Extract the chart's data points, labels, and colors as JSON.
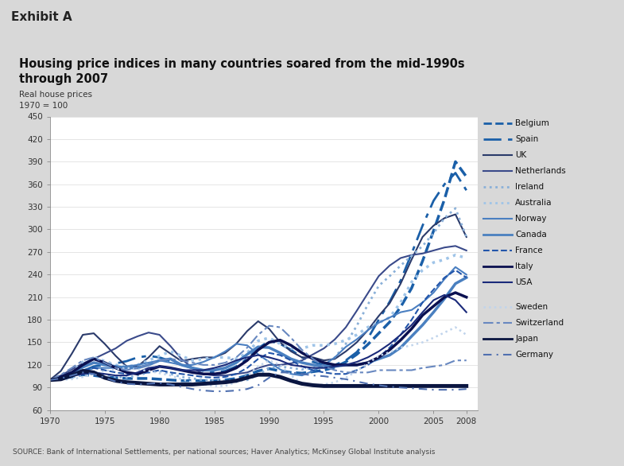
{
  "title": "Housing price indices in many countries soared from the mid-1990s\nthrough 2007",
  "subtitle": "Real house prices\n1970 = 100",
  "exhibit": "Exhibit A",
  "source": "SOURCE: Bank of International Settlements, per national sources; Haver Analytics; McKinsey Global Institute analysis",
  "ylim": [
    60,
    450
  ],
  "xlim": [
    1970,
    2009
  ],
  "yticks": [
    60,
    90,
    120,
    150,
    180,
    210,
    240,
    270,
    300,
    330,
    360,
    390,
    420,
    450
  ],
  "xticks": [
    1970,
    1975,
    1980,
    1985,
    1990,
    1995,
    2000,
    2005,
    2008
  ],
  "background_color": "#d8d8d8",
  "plot_bg": "#ffffff",
  "countries": {
    "Belgium": {
      "color": "#1a5fa8",
      "linestyle": "dashed",
      "linewidth": 2.5,
      "data": {
        "1970": 100,
        "1971": 102,
        "1972": 104,
        "1973": 107,
        "1974": 106,
        "1975": 104,
        "1976": 103,
        "1977": 102,
        "1978": 102,
        "1979": 102,
        "1980": 101,
        "1981": 100,
        "1982": 99,
        "1983": 99,
        "1984": 99,
        "1985": 99,
        "1986": 100,
        "1987": 102,
        "1988": 106,
        "1989": 112,
        "1990": 115,
        "1991": 112,
        "1992": 110,
        "1993": 109,
        "1994": 111,
        "1995": 113,
        "1996": 117,
        "1997": 124,
        "1998": 134,
        "1999": 147,
        "2000": 162,
        "2001": 177,
        "2002": 197,
        "2003": 222,
        "2004": 258,
        "2005": 298,
        "2006": 340,
        "2007": 390,
        "2008": 370
      }
    },
    "Spain": {
      "color": "#1a5fa8",
      "linestyle": "dashdot",
      "linewidth": 2.0,
      "data": {
        "1970": 100,
        "1971": 103,
        "1972": 107,
        "1973": 112,
        "1974": 118,
        "1975": 120,
        "1976": 122,
        "1977": 125,
        "1978": 130,
        "1979": 132,
        "1980": 130,
        "1981": 125,
        "1982": 120,
        "1983": 116,
        "1984": 112,
        "1985": 110,
        "1986": 112,
        "1987": 118,
        "1988": 128,
        "1989": 142,
        "1990": 152,
        "1991": 148,
        "1992": 140,
        "1993": 130,
        "1994": 124,
        "1995": 120,
        "1996": 120,
        "1997": 126,
        "1998": 137,
        "1999": 155,
        "2000": 180,
        "2001": 204,
        "2002": 232,
        "2003": 268,
        "2004": 305,
        "2005": 338,
        "2006": 360,
        "2007": 375,
        "2008": 352
      }
    },
    "UK": {
      "color": "#2a3a6a",
      "linestyle": "solid",
      "linewidth": 1.5,
      "data": {
        "1970": 100,
        "1971": 112,
        "1972": 135,
        "1973": 160,
        "1974": 162,
        "1975": 148,
        "1976": 132,
        "1977": 118,
        "1978": 118,
        "1979": 130,
        "1980": 145,
        "1981": 135,
        "1982": 125,
        "1983": 128,
        "1984": 130,
        "1985": 130,
        "1986": 136,
        "1987": 148,
        "1988": 165,
        "1989": 178,
        "1990": 168,
        "1991": 150,
        "1992": 138,
        "1993": 130,
        "1994": 130,
        "1995": 126,
        "1996": 128,
        "1997": 138,
        "1998": 150,
        "1999": 166,
        "2000": 185,
        "2001": 202,
        "2002": 228,
        "2003": 260,
        "2004": 290,
        "2005": 305,
        "2006": 315,
        "2007": 320,
        "2008": 290
      }
    },
    "Netherlands": {
      "color": "#3a4a8a",
      "linestyle": "solid",
      "linewidth": 1.5,
      "data": {
        "1970": 100,
        "1971": 106,
        "1972": 114,
        "1973": 122,
        "1974": 128,
        "1975": 135,
        "1976": 142,
        "1977": 152,
        "1978": 158,
        "1979": 163,
        "1980": 160,
        "1981": 145,
        "1982": 128,
        "1983": 116,
        "1984": 108,
        "1985": 106,
        "1986": 106,
        "1987": 108,
        "1988": 110,
        "1989": 116,
        "1990": 120,
        "1991": 120,
        "1992": 122,
        "1993": 126,
        "1994": 134,
        "1995": 142,
        "1996": 154,
        "1997": 170,
        "1998": 192,
        "1999": 215,
        "2000": 238,
        "2001": 252,
        "2002": 262,
        "2003": 266,
        "2004": 268,
        "2005": 272,
        "2006": 276,
        "2007": 278,
        "2008": 272
      }
    },
    "Ireland": {
      "color": "#8ab0d8",
      "linestyle": "dotted",
      "linewidth": 2.0,
      "data": {
        "1970": 100,
        "1971": 102,
        "1972": 104,
        "1973": 106,
        "1974": 108,
        "1975": 106,
        "1976": 104,
        "1977": 103,
        "1978": 106,
        "1979": 110,
        "1980": 112,
        "1981": 108,
        "1982": 104,
        "1983": 102,
        "1984": 100,
        "1985": 99,
        "1986": 99,
        "1987": 99,
        "1988": 100,
        "1989": 107,
        "1990": 116,
        "1991": 118,
        "1992": 116,
        "1993": 114,
        "1994": 116,
        "1995": 120,
        "1996": 130,
        "1997": 148,
        "1998": 172,
        "1999": 200,
        "2000": 225,
        "2001": 238,
        "2002": 252,
        "2003": 265,
        "2004": 278,
        "2005": 295,
        "2006": 315,
        "2007": 328,
        "2008": 290
      }
    },
    "Australia": {
      "color": "#9fc4e8",
      "linestyle": "dotted",
      "linewidth": 2.5,
      "data": {
        "1970": 100,
        "1971": 104,
        "1972": 110,
        "1973": 124,
        "1974": 130,
        "1975": 125,
        "1976": 120,
        "1977": 118,
        "1978": 120,
        "1979": 126,
        "1980": 132,
        "1981": 138,
        "1982": 132,
        "1983": 126,
        "1984": 128,
        "1985": 130,
        "1986": 130,
        "1987": 128,
        "1988": 136,
        "1989": 152,
        "1990": 156,
        "1991": 148,
        "1992": 142,
        "1993": 142,
        "1994": 146,
        "1995": 146,
        "1996": 148,
        "1997": 153,
        "1998": 160,
        "1999": 170,
        "2000": 176,
        "2001": 183,
        "2002": 203,
        "2003": 230,
        "2004": 246,
        "2005": 256,
        "2006": 260,
        "2007": 266,
        "2008": 262
      }
    },
    "Norway": {
      "color": "#4a7fc1",
      "linestyle": "solid",
      "linewidth": 1.5,
      "data": {
        "1970": 100,
        "1971": 102,
        "1972": 105,
        "1973": 110,
        "1974": 116,
        "1975": 116,
        "1976": 116,
        "1977": 118,
        "1978": 120,
        "1979": 123,
        "1980": 126,
        "1981": 123,
        "1982": 120,
        "1983": 120,
        "1984": 124,
        "1985": 130,
        "1986": 138,
        "1987": 148,
        "1988": 146,
        "1989": 134,
        "1990": 124,
        "1991": 114,
        "1992": 108,
        "1993": 106,
        "1994": 112,
        "1995": 120,
        "1996": 130,
        "1997": 144,
        "1998": 154,
        "1999": 166,
        "2000": 176,
        "2001": 183,
        "2002": 190,
        "2003": 193,
        "2004": 203,
        "2005": 216,
        "2006": 234,
        "2007": 250,
        "2008": 240
      }
    },
    "Canada": {
      "color": "#4a80c0",
      "linestyle": "solid",
      "linewidth": 2.5,
      "data": {
        "1970": 100,
        "1971": 104,
        "1972": 110,
        "1973": 117,
        "1974": 123,
        "1975": 120,
        "1976": 118,
        "1977": 116,
        "1978": 116,
        "1979": 120,
        "1980": 126,
        "1981": 128,
        "1982": 120,
        "1983": 116,
        "1984": 113,
        "1985": 113,
        "1986": 116,
        "1987": 123,
        "1988": 134,
        "1989": 144,
        "1990": 143,
        "1991": 136,
        "1992": 128,
        "1993": 123,
        "1994": 120,
        "1995": 118,
        "1996": 118,
        "1997": 120,
        "1998": 120,
        "1999": 123,
        "2000": 128,
        "2001": 133,
        "2002": 143,
        "2003": 158,
        "2004": 173,
        "2005": 190,
        "2006": 208,
        "2007": 228,
        "2008": 236
      }
    },
    "France": {
      "color": "#2255aa",
      "linestyle": "dashed",
      "linewidth": 1.5,
      "data": {
        "1970": 100,
        "1971": 104,
        "1972": 108,
        "1973": 113,
        "1974": 116,
        "1975": 113,
        "1976": 110,
        "1977": 108,
        "1978": 108,
        "1979": 110,
        "1980": 113,
        "1981": 110,
        "1982": 108,
        "1983": 106,
        "1984": 104,
        "1985": 103,
        "1986": 104,
        "1987": 108,
        "1988": 116,
        "1989": 128,
        "1990": 136,
        "1991": 133,
        "1992": 126,
        "1993": 118,
        "1994": 113,
        "1995": 110,
        "1996": 108,
        "1997": 108,
        "1998": 113,
        "1999": 120,
        "2000": 130,
        "2001": 143,
        "2002": 160,
        "2003": 180,
        "2004": 203,
        "2005": 220,
        "2006": 236,
        "2007": 246,
        "2008": 236
      }
    },
    "Italy": {
      "color": "#0a1050",
      "linestyle": "solid",
      "linewidth": 2.5,
      "data": {
        "1970": 100,
        "1971": 104,
        "1972": 110,
        "1973": 120,
        "1974": 128,
        "1975": 123,
        "1976": 116,
        "1977": 110,
        "1978": 108,
        "1979": 113,
        "1980": 118,
        "1981": 116,
        "1982": 113,
        "1983": 110,
        "1984": 108,
        "1985": 108,
        "1986": 110,
        "1987": 116,
        "1988": 126,
        "1989": 140,
        "1990": 150,
        "1991": 153,
        "1992": 146,
        "1993": 136,
        "1994": 128,
        "1995": 123,
        "1996": 120,
        "1997": 120,
        "1998": 120,
        "1999": 123,
        "2000": 130,
        "2001": 140,
        "2002": 153,
        "2003": 168,
        "2004": 186,
        "2005": 198,
        "2006": 210,
        "2007": 216,
        "2008": 210
      }
    },
    "USA": {
      "color": "#1a2a7a",
      "linestyle": "solid",
      "linewidth": 1.5,
      "data": {
        "1970": 100,
        "1971": 102,
        "1972": 105,
        "1973": 108,
        "1974": 110,
        "1975": 108,
        "1976": 106,
        "1977": 106,
        "1978": 110,
        "1979": 116,
        "1980": 118,
        "1981": 116,
        "1982": 113,
        "1983": 113,
        "1984": 113,
        "1985": 116,
        "1986": 120,
        "1987": 126,
        "1988": 130,
        "1989": 133,
        "1990": 130,
        "1991": 126,
        "1992": 120,
        "1993": 118,
        "1994": 116,
        "1995": 116,
        "1996": 118,
        "1997": 120,
        "1998": 124,
        "1999": 130,
        "2000": 138,
        "2001": 148,
        "2002": 160,
        "2003": 173,
        "2004": 190,
        "2005": 206,
        "2006": 213,
        "2007": 206,
        "2008": 190
      }
    },
    "Sweden": {
      "color": "#c0d4ec",
      "linestyle": "dotted",
      "linewidth": 1.8,
      "data": {
        "1970": 100,
        "1971": 100,
        "1972": 101,
        "1973": 104,
        "1974": 108,
        "1975": 112,
        "1976": 114,
        "1977": 116,
        "1978": 114,
        "1979": 112,
        "1980": 109,
        "1981": 106,
        "1982": 101,
        "1983": 97,
        "1984": 94,
        "1985": 92,
        "1986": 92,
        "1987": 97,
        "1988": 106,
        "1989": 118,
        "1990": 126,
        "1991": 120,
        "1992": 106,
        "1993": 95,
        "1994": 92,
        "1995": 94,
        "1996": 97,
        "1997": 103,
        "1998": 112,
        "1999": 122,
        "2000": 132,
        "2001": 137,
        "2002": 143,
        "2003": 146,
        "2004": 150,
        "2005": 156,
        "2006": 163,
        "2007": 170,
        "2008": 160
      }
    },
    "Switzerland": {
      "color": "#6888c0",
      "linestyle": "dashdot",
      "linewidth": 1.5,
      "data": {
        "1970": 100,
        "1971": 107,
        "1972": 116,
        "1973": 126,
        "1974": 130,
        "1975": 123,
        "1976": 116,
        "1977": 113,
        "1978": 116,
        "1979": 120,
        "1980": 126,
        "1981": 128,
        "1982": 126,
        "1983": 123,
        "1984": 120,
        "1985": 120,
        "1986": 123,
        "1987": 130,
        "1988": 143,
        "1989": 160,
        "1990": 172,
        "1991": 170,
        "1992": 156,
        "1993": 140,
        "1994": 128,
        "1995": 118,
        "1996": 113,
        "1997": 110,
        "1998": 110,
        "1999": 110,
        "2000": 113,
        "2001": 113,
        "2002": 113,
        "2003": 113,
        "2004": 116,
        "2005": 118,
        "2006": 120,
        "2007": 126,
        "2008": 126
      }
    },
    "Japan": {
      "color": "#0a1540",
      "linestyle": "solid",
      "linewidth": 3.5,
      "data": {
        "1970": 100,
        "1971": 101,
        "1972": 106,
        "1973": 112,
        "1974": 110,
        "1975": 103,
        "1976": 99,
        "1977": 97,
        "1978": 96,
        "1979": 95,
        "1980": 94,
        "1981": 94,
        "1982": 94,
        "1983": 94,
        "1984": 95,
        "1985": 96,
        "1986": 97,
        "1987": 99,
        "1988": 103,
        "1989": 107,
        "1990": 107,
        "1991": 104,
        "1992": 99,
        "1993": 95,
        "1994": 93,
        "1995": 92,
        "1996": 92,
        "1997": 92,
        "1998": 92,
        "1999": 92,
        "2000": 92,
        "2001": 92,
        "2002": 92,
        "2003": 92,
        "2004": 92,
        "2005": 92,
        "2006": 92,
        "2007": 92,
        "2008": 92
      }
    },
    "Germany": {
      "color": "#5070b0",
      "linestyle": "dashed",
      "linewidth": 1.5,
      "data": {
        "1970": 100,
        "1971": 102,
        "1972": 106,
        "1973": 110,
        "1974": 108,
        "1975": 103,
        "1976": 98,
        "1977": 95,
        "1978": 94,
        "1979": 95,
        "1980": 96,
        "1981": 94,
        "1982": 91,
        "1983": 88,
        "1984": 86,
        "1985": 85,
        "1986": 85,
        "1987": 86,
        "1988": 88,
        "1989": 93,
        "1990": 103,
        "1991": 110,
        "1992": 110,
        "1993": 108,
        "1994": 106,
        "1995": 105,
        "1996": 103,
        "1997": 101,
        "1998": 98,
        "1999": 95,
        "2000": 93,
        "2001": 91,
        "2002": 90,
        "2003": 89,
        "2004": 88,
        "2005": 87,
        "2006": 87,
        "2007": 87,
        "2008": 88
      }
    }
  },
  "legend_order": [
    "Belgium",
    "Spain",
    "UK",
    "Netherlands",
    "Ireland",
    "Australia",
    "Norway",
    "Canada",
    "France",
    "Italy",
    "USA",
    "Sweden",
    "Switzerland",
    "Japan",
    "Germany"
  ],
  "legend_gap_after": "USA"
}
